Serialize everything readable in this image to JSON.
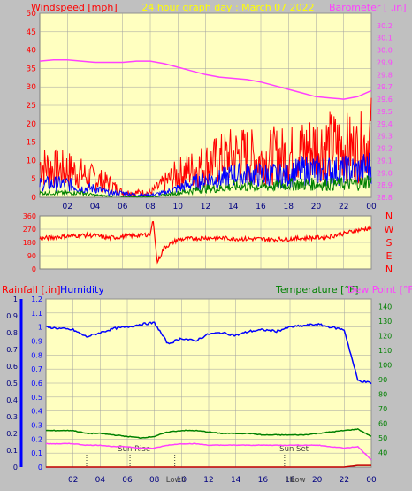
{
  "header": {
    "left_title": "Windspeed [mph]",
    "center_title": "24 hour graph day : March 07 2022",
    "right_title": "Barometer [ .in]"
  },
  "colors": {
    "background": "#c0c0c0",
    "plot": "#ffffc0",
    "wind": "#ff0000",
    "gust_avg": "#0000ff",
    "wind_low": "#008000",
    "barometer": "#ff40ff",
    "grid": "#a0a0a0",
    "title_yellow": "#ffff00"
  },
  "compass_labels": [
    "N",
    "W",
    "S",
    "E",
    "N"
  ],
  "bottom_header": {
    "rainfall": "Rainfall [.in]",
    "humidity": "Humidity",
    "temperature": "Temperature [°F]",
    "dew_point": "Dew Point [°F]"
  },
  "annotations": [
    "Sun Rise",
    "Sun Set",
    "Low",
    "Hi",
    "Hi",
    "Low"
  ],
  "chart_data": [
    {
      "type": "line",
      "title": "24 hour graph day : March 07 2022",
      "ylabel": "Windspeed [mph]",
      "y2label": "Barometer [ .in]",
      "ylim": [
        0,
        50
      ],
      "y2lim": [
        28.8,
        30.3
      ],
      "x_ticks": [
        "02",
        "04",
        "06",
        "08",
        "10",
        "12",
        "14",
        "16",
        "18",
        "20",
        "22",
        "00"
      ],
      "y_ticks": [
        0,
        5,
        10,
        15,
        20,
        25,
        30,
        35,
        40,
        45,
        50
      ],
      "y2_ticks": [
        28.8,
        28.9,
        29.0,
        29.1,
        29.2,
        29.3,
        29.4,
        29.5,
        29.6,
        29.7,
        29.8,
        29.9,
        30.0,
        30.1,
        30.2
      ],
      "grid": true,
      "x": [
        0,
        1,
        2,
        3,
        4,
        5,
        6,
        7,
        8,
        9,
        10,
        11,
        12,
        13,
        14,
        15,
        16,
        17,
        18,
        19,
        20,
        21,
        22,
        23,
        24
      ],
      "series": [
        {
          "values": [
            7,
            6,
            6,
            5,
            4,
            3,
            1,
            1,
            1,
            3,
            5,
            6,
            7,
            8,
            9,
            9,
            8,
            9,
            9,
            10,
            11,
            11,
            11,
            10,
            13
          ]
        },
        {
          "values": [
            3,
            3,
            3,
            2,
            2,
            1,
            1,
            0.5,
            0.5,
            1,
            2,
            3,
            4,
            4,
            5,
            5,
            5,
            5,
            5,
            6,
            6,
            6,
            6,
            6,
            7
          ]
        },
        {
          "values": [
            1,
            1,
            1,
            1,
            0.5,
            0.3,
            0.2,
            0.1,
            0.1,
            0.5,
            1,
            1.5,
            2,
            2,
            2.5,
            2.5,
            2.5,
            2.5,
            3,
            3,
            3,
            3,
            3,
            3,
            4
          ]
        },
        {
          "axis": "y2",
          "values": [
            29.91,
            29.92,
            29.92,
            29.91,
            29.9,
            29.9,
            29.9,
            29.91,
            29.91,
            29.89,
            29.86,
            29.83,
            29.8,
            29.78,
            29.77,
            29.76,
            29.74,
            29.71,
            29.68,
            29.65,
            29.62,
            29.61,
            29.6,
            29.62,
            29.67
          ]
        }
      ]
    },
    {
      "type": "line",
      "ylabel": "Wind direction",
      "ylim": [
        0,
        360
      ],
      "y_ticks": [
        0,
        90,
        180,
        270,
        360
      ],
      "x": [
        0,
        1,
        2,
        3,
        4,
        5,
        6,
        7,
        8,
        8.2,
        8.5,
        9,
        10,
        11,
        12,
        13,
        14,
        15,
        16,
        17,
        18,
        19,
        20,
        21,
        22,
        23,
        24
      ],
      "series": [
        {
          "values": [
            205,
            215,
            222,
            228,
            226,
            210,
            220,
            228,
            235,
            340,
            40,
            145,
            200,
            205,
            212,
            210,
            206,
            204,
            203,
            200,
            204,
            208,
            212,
            220,
            240,
            262,
            280
          ]
        }
      ]
    },
    {
      "type": "line",
      "ylabel": "Rainfall [.in]",
      "y2label": "Humidity",
      "y3label": "Temperature [°F] / Dew Point [°F]",
      "ylim": [
        0,
        1.0
      ],
      "y_ticks": [
        0,
        0.1,
        0.2,
        0.3,
        0.4,
        0.5,
        0.6,
        0.7,
        0.8,
        0.9,
        1.0
      ],
      "y2_ticks": [
        0,
        0.1,
        0.2,
        0.3,
        0.4,
        0.5,
        0.6,
        0.7,
        0.8,
        0.9,
        1,
        1.1,
        1.2
      ],
      "y3lim": [
        30,
        145
      ],
      "y3_ticks": [
        40,
        50,
        60,
        70,
        80,
        90,
        100,
        110,
        120,
        130,
        140
      ],
      "x_ticks": [
        "02",
        "04",
        "06",
        "08",
        "10",
        "12",
        "14",
        "16",
        "18",
        "20",
        "22",
        "00"
      ],
      "x": [
        0,
        1,
        2,
        3,
        4,
        5,
        6,
        7,
        8,
        9,
        10,
        11,
        12,
        13,
        14,
        15,
        16,
        17,
        18,
        19,
        20,
        21,
        22,
        23,
        24
      ],
      "series": [
        {
          "axis": "y2",
          "values": [
            1.0,
            0.99,
            0.98,
            0.93,
            0.96,
            0.99,
            1.0,
            1.02,
            1.03,
            0.88,
            0.92,
            0.9,
            0.95,
            0.96,
            0.94,
            0.97,
            0.98,
            0.97,
            1.0,
            1.01,
            1.02,
            1.0,
            0.98,
            0.62,
            0.6
          ]
        },
        {
          "axis": "y3",
          "values": [
            55,
            55,
            55,
            53,
            53,
            52,
            51,
            50,
            51,
            54,
            55,
            55,
            54,
            53,
            53,
            53,
            52,
            52,
            52,
            52,
            53,
            54,
            55,
            56,
            51
          ]
        },
        {
          "axis": "y3",
          "values": [
            46,
            46,
            46,
            45,
            45,
            44,
            44,
            43,
            43,
            45,
            46,
            46,
            45,
            45,
            45,
            45,
            45,
            45,
            45,
            45,
            45,
            44,
            43,
            44,
            35
          ]
        },
        {
          "axis": "y",
          "values": [
            0,
            0,
            0,
            0,
            0,
            0,
            0,
            0,
            0,
            0,
            0,
            0,
            0,
            0,
            0,
            0,
            0,
            0,
            0,
            0,
            0,
            0,
            0,
            0.01,
            0.01
          ]
        }
      ]
    }
  ]
}
